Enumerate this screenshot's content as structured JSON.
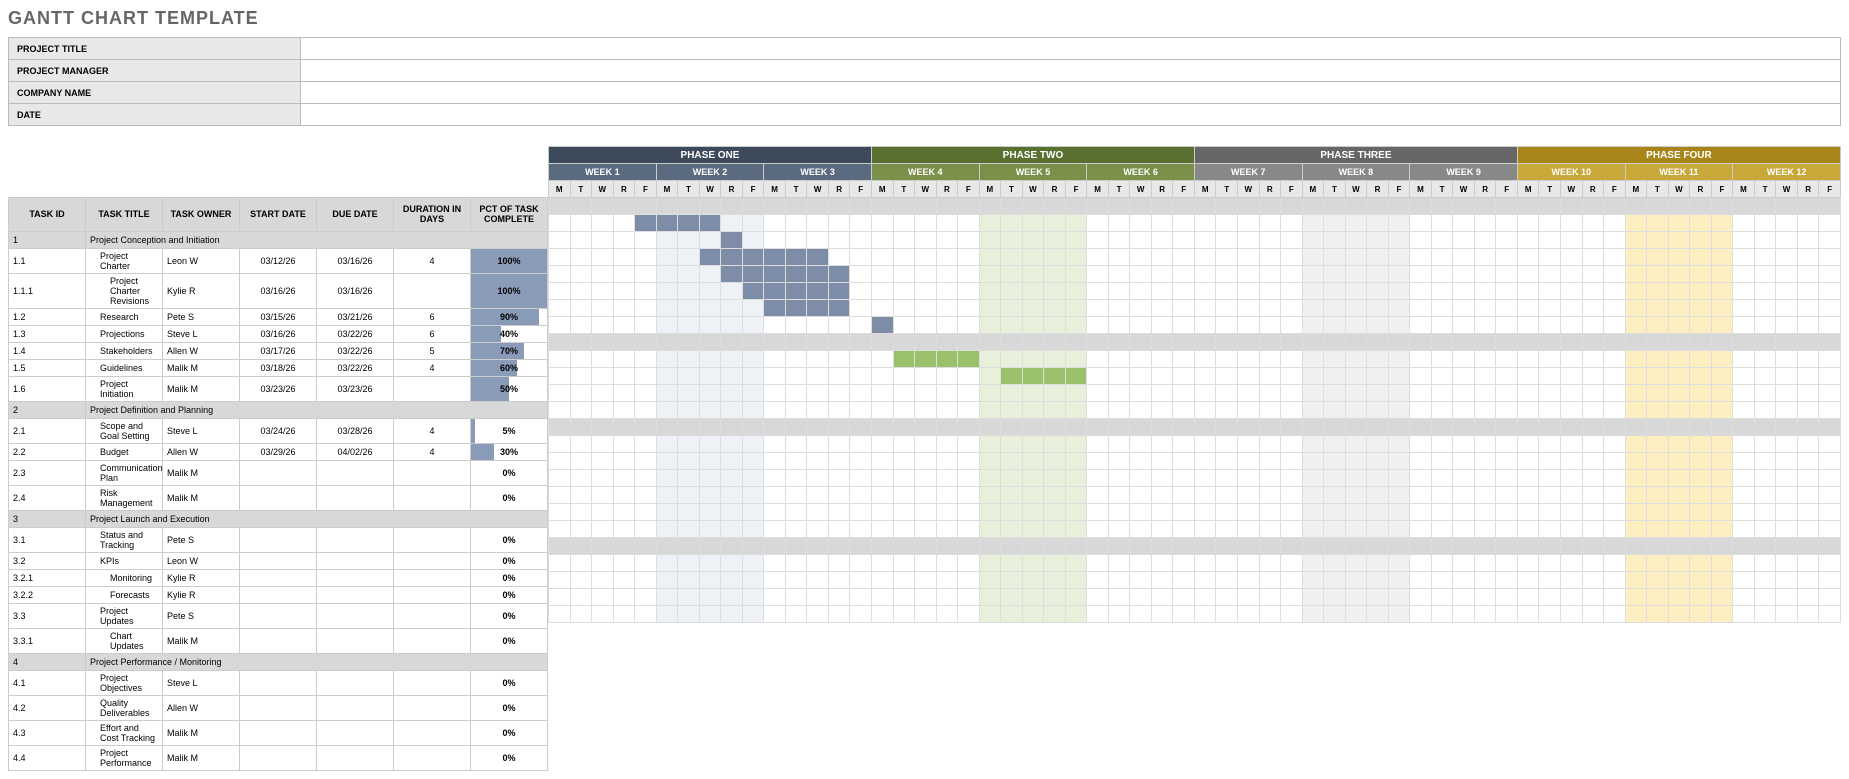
{
  "title": "GANTT CHART TEMPLATE",
  "meta": {
    "labels": [
      "PROJECT TITLE",
      "PROJECT MANAGER",
      "COMPANY NAME",
      "DATE"
    ],
    "values": [
      "",
      "",
      "",
      ""
    ]
  },
  "columns": {
    "id": "TASK ID",
    "title": "TASK TITLE",
    "owner": "TASK OWNER",
    "start": "START DATE",
    "due": "DUE DATE",
    "duration": "DURATION IN DAYS",
    "pct": "PCT OF TASK COMPLETE"
  },
  "phases": [
    {
      "label": "PHASE ONE",
      "bg": "#3d4a5c",
      "week_bg": "#5a6a7f",
      "weeks": [
        "WEEK 1",
        "WEEK 2",
        "WEEK 3"
      ],
      "shade": "shade-lt"
    },
    {
      "label": "PHASE TWO",
      "bg": "#5a7030",
      "week_bg": "#7a9048",
      "weeks": [
        "WEEK 4",
        "WEEK 5",
        "WEEK 6"
      ],
      "shade": "shade-gn"
    },
    {
      "label": "PHASE THREE",
      "bg": "#666666",
      "week_bg": "#888888",
      "weeks": [
        "WEEK 7",
        "WEEK 8",
        "WEEK 9"
      ],
      "shade": "shade-gr"
    },
    {
      "label": "PHASE FOUR",
      "bg": "#a88518",
      "week_bg": "#c8a838",
      "weeks": [
        "WEEK 10",
        "WEEK 11",
        "WEEK 12"
      ],
      "shade": "shade-yl"
    }
  ],
  "days": [
    "M",
    "T",
    "W",
    "R",
    "F"
  ],
  "pct_fill_color": "#8a9bb8",
  "bar_colors": {
    "blue": "#7d8da8",
    "green": "#9bc06a"
  },
  "shaded_weeks": [
    1,
    4,
    7,
    10
  ],
  "tasks": [
    {
      "id": "1",
      "title": "Project Conception and Initiation",
      "section": true
    },
    {
      "id": "1.1",
      "title": "Project Charter",
      "indent": 1,
      "owner": "Leon W",
      "start": "03/12/26",
      "due": "03/16/26",
      "dur": "4",
      "pct": 100,
      "bar": {
        "start": 4,
        "len": 4,
        "color": "blue"
      }
    },
    {
      "id": "1.1.1",
      "title": "Project Charter Revisions",
      "indent": 2,
      "owner": "Kylie R",
      "start": "03/16/26",
      "due": "03/16/26",
      "dur": "",
      "pct": 100,
      "bar": {
        "start": 8,
        "len": 1,
        "color": "blue"
      }
    },
    {
      "id": "1.2",
      "title": "Research",
      "indent": 1,
      "owner": "Pete S",
      "start": "03/15/26",
      "due": "03/21/26",
      "dur": "6",
      "pct": 90,
      "bar": {
        "start": 7,
        "len": 6,
        "color": "blue"
      }
    },
    {
      "id": "1.3",
      "title": "Projections",
      "indent": 1,
      "owner": "Steve L",
      "start": "03/16/26",
      "due": "03/22/26",
      "dur": "6",
      "pct": 40,
      "bar": {
        "start": 8,
        "len": 6,
        "color": "blue"
      }
    },
    {
      "id": "1.4",
      "title": "Stakeholders",
      "indent": 1,
      "owner": "Allen W",
      "start": "03/17/26",
      "due": "03/22/26",
      "dur": "5",
      "pct": 70,
      "bar": {
        "start": 9,
        "len": 5,
        "color": "blue"
      }
    },
    {
      "id": "1.5",
      "title": "Guidelines",
      "indent": 1,
      "owner": "Malik M",
      "start": "03/18/26",
      "due": "03/22/26",
      "dur": "4",
      "pct": 60,
      "bar": {
        "start": 10,
        "len": 4,
        "color": "blue"
      }
    },
    {
      "id": "1.6",
      "title": "Project Initiation",
      "indent": 1,
      "owner": "Malik M",
      "start": "03/23/26",
      "due": "03/23/26",
      "dur": "",
      "pct": 50,
      "bar": {
        "start": 15,
        "len": 1,
        "color": "blue"
      }
    },
    {
      "id": "2",
      "title": "Project Definition and Planning",
      "section": true
    },
    {
      "id": "2.1",
      "title": "Scope and Goal Setting",
      "indent": 1,
      "owner": "Steve L",
      "start": "03/24/26",
      "due": "03/28/26",
      "dur": "4",
      "pct": 5,
      "bar": {
        "start": 16,
        "len": 4,
        "color": "green"
      }
    },
    {
      "id": "2.2",
      "title": "Budget",
      "indent": 1,
      "owner": "Allen W",
      "start": "03/29/26",
      "due": "04/02/26",
      "dur": "4",
      "pct": 30,
      "bar": {
        "start": 21,
        "len": 4,
        "color": "green"
      }
    },
    {
      "id": "2.3",
      "title": "Communication Plan",
      "indent": 1,
      "owner": "Malik M",
      "start": "",
      "due": "",
      "dur": "",
      "pct": 0
    },
    {
      "id": "2.4",
      "title": "Risk Management",
      "indent": 1,
      "owner": "Malik M",
      "start": "",
      "due": "",
      "dur": "",
      "pct": 0
    },
    {
      "id": "3",
      "title": "Project Launch and Execution",
      "section": true
    },
    {
      "id": "3.1",
      "title": "Status and Tracking",
      "indent": 1,
      "owner": "Pete S",
      "start": "",
      "due": "",
      "dur": "",
      "pct": 0
    },
    {
      "id": "3.2",
      "title": "KPIs",
      "indent": 1,
      "owner": "Leon W",
      "start": "",
      "due": "",
      "dur": "",
      "pct": 0
    },
    {
      "id": "3.2.1",
      "title": "Monitoring",
      "indent": 2,
      "owner": "Kylie R",
      "start": "",
      "due": "",
      "dur": "",
      "pct": 0
    },
    {
      "id": "3.2.2",
      "title": "Forecasts",
      "indent": 2,
      "owner": "Kylie R",
      "start": "",
      "due": "",
      "dur": "",
      "pct": 0
    },
    {
      "id": "3.3",
      "title": "Project Updates",
      "indent": 1,
      "owner": "Pete S",
      "start": "",
      "due": "",
      "dur": "",
      "pct": 0
    },
    {
      "id": "3.3.1",
      "title": "Chart Updates",
      "indent": 2,
      "owner": "Malik M",
      "start": "",
      "due": "",
      "dur": "",
      "pct": 0
    },
    {
      "id": "4",
      "title": "Project Performance / Monitoring",
      "section": true
    },
    {
      "id": "4.1",
      "title": "Project Objectives",
      "indent": 1,
      "owner": "Steve L",
      "start": "",
      "due": "",
      "dur": "",
      "pct": 0
    },
    {
      "id": "4.2",
      "title": "Quality Deliverables",
      "indent": 1,
      "owner": "Allen W",
      "start": "",
      "due": "",
      "dur": "",
      "pct": 0
    },
    {
      "id": "4.3",
      "title": "Effort and Cost Tracking",
      "indent": 1,
      "owner": "Malik M",
      "start": "",
      "due": "",
      "dur": "",
      "pct": 0
    },
    {
      "id": "4.4",
      "title": "Project Performance",
      "indent": 1,
      "owner": "Malik M",
      "start": "",
      "due": "",
      "dur": "",
      "pct": 0
    }
  ]
}
